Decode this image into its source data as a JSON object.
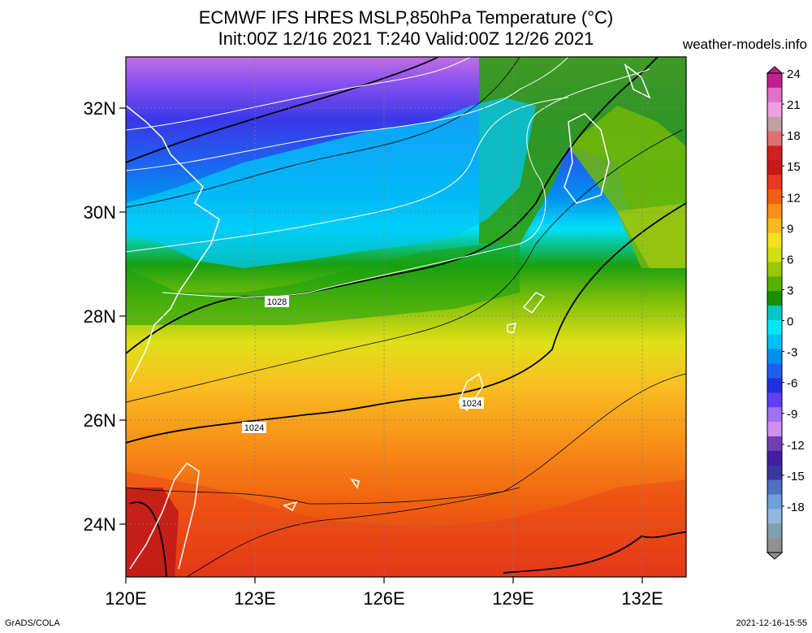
{
  "header": {
    "title_line1": "ECMWF IFS HRES MSLP,850hPa Temperature (°C)",
    "title_line2": "Init:00Z 12/16 2021 T:240 Valid:00Z 12/26 2021",
    "site": "weather-models.info"
  },
  "footer": {
    "left": "GrADS/COLA",
    "right": "2021-12-16-15:55"
  },
  "map": {
    "lat_labels": [
      "32N",
      "30N",
      "28N",
      "26N",
      "24N"
    ],
    "lon_labels": [
      "120E",
      "123E",
      "126E",
      "129E",
      "132E"
    ],
    "contour_labels": [
      "1028",
      "1024",
      "1024"
    ]
  },
  "colorbar": {
    "labels": [
      "24",
      "21",
      "18",
      "15",
      "12",
      "9",
      "6",
      "3",
      "0",
      "-3",
      "-6",
      "-9",
      "-12",
      "-15",
      "-18"
    ],
    "colors": [
      "#c02090",
      "#e070c8",
      "#f0a0e0",
      "#c0a0a0",
      "#e07070",
      "#d02020",
      "#c81818",
      "#e83820",
      "#f06010",
      "#f89018",
      "#f8b820",
      "#f8e020",
      "#d0e010",
      "#98c808",
      "#58b000",
      "#189000",
      "#00c8c8",
      "#00e8f8",
      "#00c0f8",
      "#0090f0",
      "#2060f0",
      "#2030e0",
      "#6040f0",
      "#a070f0",
      "#d090f0",
      "#7040b0",
      "#4020a0",
      "#3838a0",
      "#5070c0",
      "#70a0d8",
      "#90b8e0",
      "#80a0b0",
      "#909090"
    ]
  }
}
